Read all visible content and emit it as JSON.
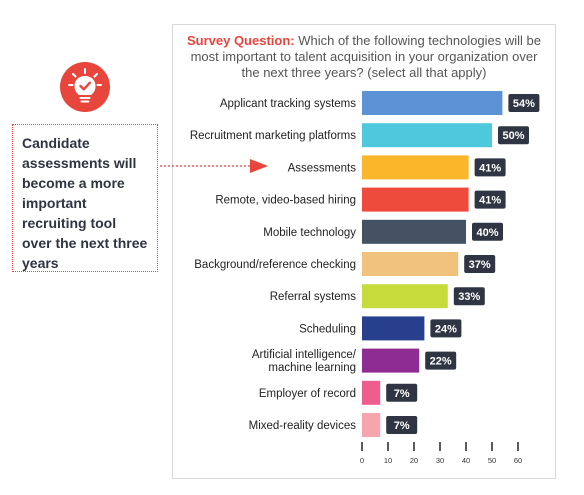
{
  "question": {
    "lead": "Survey Question:",
    "text": " Which of the following technologies will be most important to talent acquisition in your organization over the next three years? (select all that apply)"
  },
  "callout": {
    "text": "Candidate assessments will become a more important recruiting tool over the next three years",
    "icon": "lightbulb-check-icon"
  },
  "colors": {
    "accent": "#e8453c",
    "badge": "#2f3542"
  },
  "chart_data": {
    "type": "bar",
    "orientation": "horizontal",
    "categories": [
      [
        "Applicant tracking systems"
      ],
      [
        "Recruitment marketing platforms"
      ],
      [
        "Assessments"
      ],
      [
        "Remote, video-based hiring"
      ],
      [
        "Mobile technology"
      ],
      [
        "Background/reference checking"
      ],
      [
        "Referral systems"
      ],
      [
        "Scheduling"
      ],
      [
        "Artificial intelligence/",
        "machine learning"
      ],
      [
        "Employer of record"
      ],
      [
        "Mixed-reality devices"
      ]
    ],
    "values": [
      54,
      50,
      41,
      41,
      40,
      37,
      33,
      24,
      22,
      7,
      7
    ],
    "value_labels": [
      "54%",
      "50%",
      "41%",
      "41%",
      "40%",
      "37%",
      "33%",
      "24%",
      "22%",
      "7%",
      "7%"
    ],
    "colors": [
      "#5b93d6",
      "#4ec8dc",
      "#fbb62a",
      "#ee4b3d",
      "#445263",
      "#f1c27c",
      "#c6dc3a",
      "#283f8e",
      "#8e2c93",
      "#ef5c8e",
      "#f6a5ae"
    ],
    "xticks": [
      0,
      10,
      20,
      30,
      40,
      50,
      60
    ],
    "xlim": [
      0,
      60
    ],
    "highlight": "Assessments"
  }
}
